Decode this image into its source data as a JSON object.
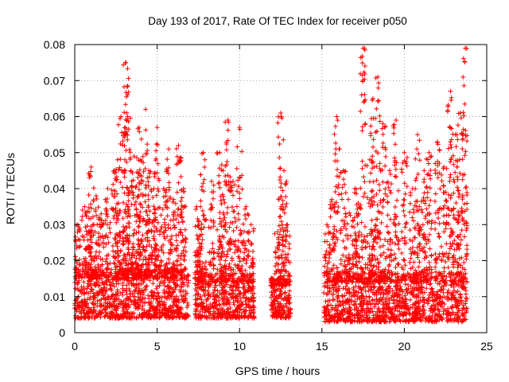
{
  "chart_data": {
    "type": "scatter",
    "title": "Day 193 of 2017, Rate Of TEC Index for receiver p050",
    "xlabel": "GPS time / hours",
    "ylabel": "ROTI / TECUs",
    "xlim": [
      0,
      25
    ],
    "ylim": [
      0,
      0.08
    ],
    "x_ticks": [
      "0",
      "5",
      "10",
      "15",
      "20",
      "25"
    ],
    "y_ticks": [
      "0",
      "0.01",
      "0.02",
      "0.03",
      "0.04",
      "0.05",
      "0.06",
      "0.07",
      "0.08"
    ],
    "grid": true,
    "marker": "plus",
    "color": "#ff0000",
    "series": [
      {
        "segments": [
          {
            "x_start": 0.0,
            "x_end": 6.9,
            "baseline": [
              0.004,
              0.015
            ],
            "spikes": [
              [
                0.2,
                0.03
              ],
              [
                0.6,
                0.035
              ],
              [
                0.9,
                0.028
              ],
              [
                1.0,
                0.046
              ],
              [
                1.3,
                0.038
              ],
              [
                1.6,
                0.033
              ],
              [
                2.0,
                0.04
              ],
              [
                2.4,
                0.045
              ],
              [
                2.6,
                0.048
              ],
              [
                2.8,
                0.06
              ],
              [
                3.1,
                0.075
              ],
              [
                3.2,
                0.066
              ],
              [
                3.4,
                0.045
              ],
              [
                3.6,
                0.049
              ],
              [
                3.9,
                0.057
              ],
              [
                4.0,
                0.048
              ],
              [
                4.3,
                0.062
              ],
              [
                4.5,
                0.045
              ],
              [
                4.8,
                0.04
              ],
              [
                5.0,
                0.057
              ],
              [
                5.4,
                0.04
              ],
              [
                5.7,
                0.051
              ],
              [
                6.0,
                0.037
              ],
              [
                6.3,
                0.052
              ],
              [
                6.6,
                0.04
              ]
            ]
          },
          {
            "x_start": 7.3,
            "x_end": 10.9,
            "baseline": [
              0.004,
              0.014
            ],
            "spikes": [
              [
                7.4,
                0.035
              ],
              [
                7.6,
                0.027
              ],
              [
                7.8,
                0.05
              ],
              [
                8.3,
                0.042
              ],
              [
                8.8,
                0.05
              ],
              [
                9.0,
                0.045
              ],
              [
                9.3,
                0.059
              ],
              [
                9.6,
                0.042
              ],
              [
                10.0,
                0.057
              ],
              [
                10.4,
                0.035
              ],
              [
                10.7,
                0.03
              ]
            ]
          },
          {
            "x_start": 11.9,
            "x_end": 13.1,
            "baseline": [
              0.004,
              0.013
            ],
            "spikes": [
              [
                12.0,
                0.015
              ],
              [
                12.3,
                0.028
              ],
              [
                12.5,
                0.061
              ],
              [
                12.7,
                0.045
              ],
              [
                12.9,
                0.03
              ]
            ]
          },
          {
            "x_start": 15.1,
            "x_end": 23.8,
            "baseline": [
              0.003,
              0.014
            ],
            "spikes": [
              [
                15.3,
                0.03
              ],
              [
                15.6,
                0.037
              ],
              [
                15.9,
                0.06
              ],
              [
                16.3,
                0.045
              ],
              [
                16.6,
                0.037
              ],
              [
                17.0,
                0.04
              ],
              [
                17.2,
                0.036
              ],
              [
                17.5,
                0.079
              ],
              [
                17.9,
                0.048
              ],
              [
                18.1,
                0.065
              ],
              [
                18.4,
                0.071
              ],
              [
                18.7,
                0.058
              ],
              [
                19.1,
                0.045
              ],
              [
                19.5,
                0.059
              ],
              [
                20.0,
                0.05
              ],
              [
                20.5,
                0.04
              ],
              [
                20.8,
                0.055
              ],
              [
                21.2,
                0.045
              ],
              [
                21.5,
                0.05
              ],
              [
                22.0,
                0.053
              ],
              [
                22.4,
                0.046
              ],
              [
                22.8,
                0.067
              ],
              [
                23.1,
                0.055
              ],
              [
                23.4,
                0.061
              ],
              [
                23.7,
                0.079
              ]
            ]
          }
        ]
      }
    ]
  }
}
